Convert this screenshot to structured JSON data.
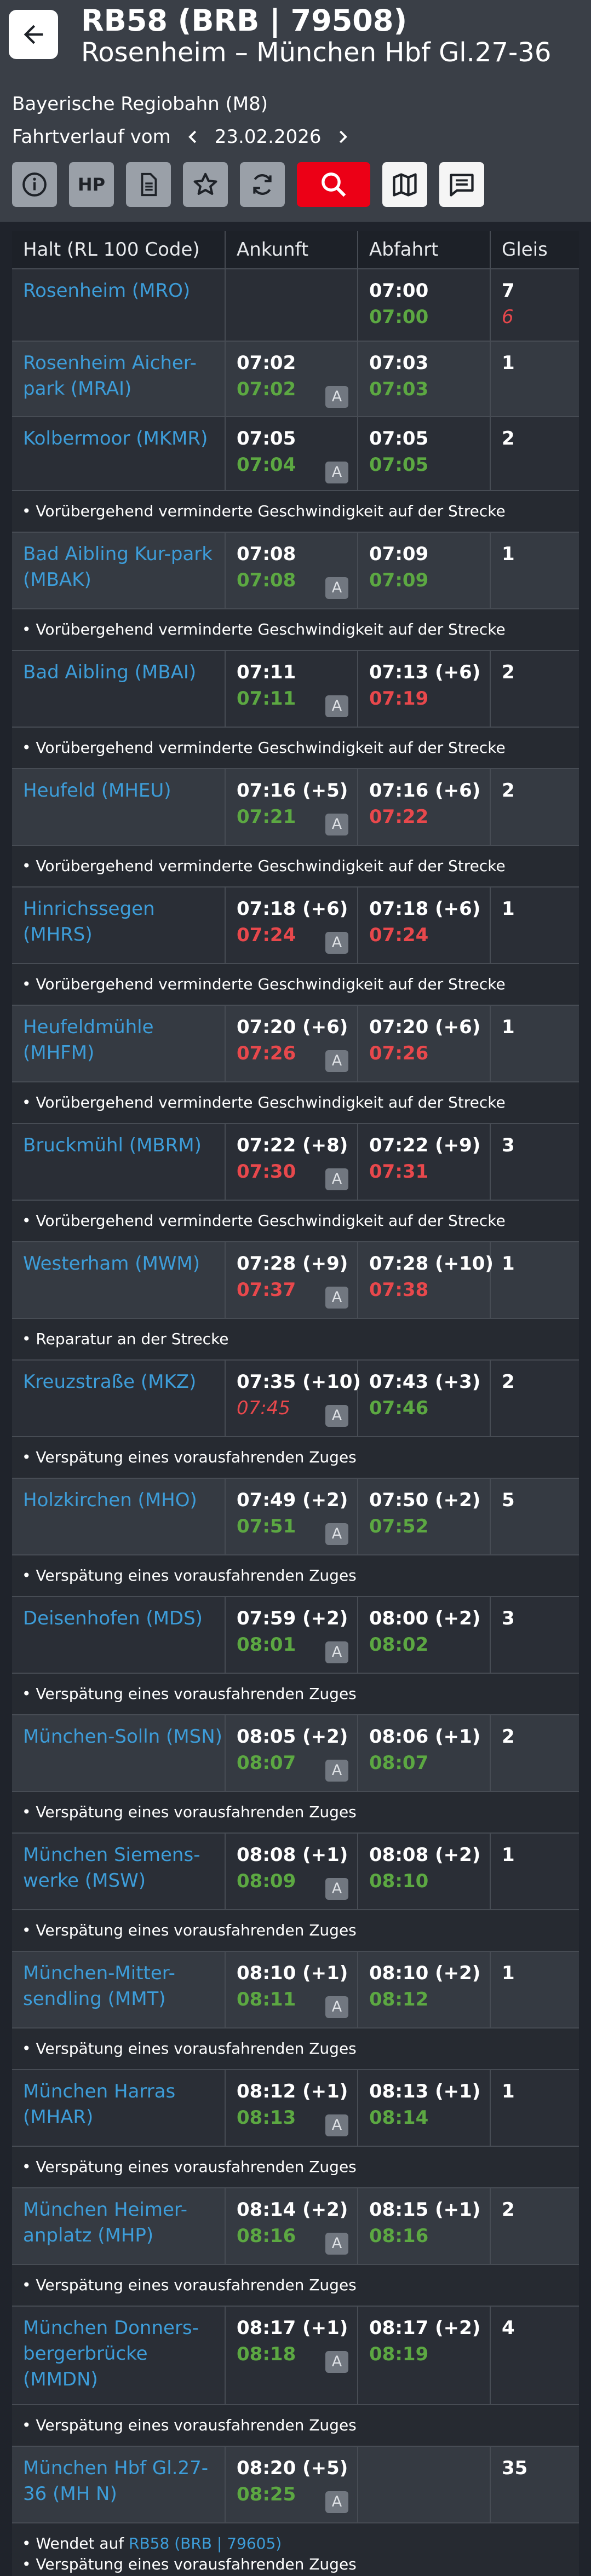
{
  "header": {
    "train": "RB58 (BRB | 79508)",
    "route": "Rosenheim – München Hbf Gl.27-36",
    "operator": "Bayerische Regiobahn (M8)",
    "date_label": "Fahrtverlauf vom",
    "date": "23.02.2026"
  },
  "toolbar": {
    "hp_label": "HP"
  },
  "table": {
    "headers": [
      "Halt (RL 100 Code)",
      "Ankunft",
      "Abfahrt",
      "Gleis"
    ],
    "badge": "A",
    "stops": [
      {
        "name": "Rosenheim (MRO)",
        "arr": "",
        "arr_act": "",
        "arr_cls": "",
        "dep": "07:00",
        "dep_act": "07:00",
        "dep_cls": "ok",
        "track": "7",
        "track_alt": "6",
        "h": 132,
        "note": "",
        "bg": "dark"
      },
      {
        "name": "Rosenheim Aicher-park (MRAI)",
        "arr": "07:02",
        "arr_act": "07:02",
        "arr_cls": "ok",
        "dep": "07:03",
        "dep_act": "07:03",
        "dep_cls": "ok",
        "track": "1",
        "track_alt": "",
        "h": 138,
        "note": "",
        "bg": "light"
      },
      {
        "name": "Kolbermoor (MKMR)",
        "arr": "07:05",
        "arr_act": "07:04",
        "arr_cls": "ok",
        "dep": "07:05",
        "dep_act": "07:05",
        "dep_cls": "ok",
        "track": "2",
        "track_alt": "",
        "h": 135,
        "note": "Vorübergehend verminderte Geschwindigkeit auf der Strecke",
        "bg": "dark"
      },
      {
        "name": "Bad Aibling Kur-park (MBAK)",
        "arr": "07:08",
        "arr_act": "07:08",
        "arr_cls": "ok",
        "dep": "07:09",
        "dep_act": "07:09",
        "dep_cls": "ok",
        "track": "1",
        "track_alt": "",
        "h": 140,
        "note": "Vorübergehend verminderte Geschwindigkeit auf der Strecke",
        "bg": "light"
      },
      {
        "name": "Bad Aibling (MBAI)",
        "arr": "07:11",
        "arr_act": "07:11",
        "arr_cls": "ok",
        "dep": "07:13 (+6)",
        "dep_act": "07:19",
        "dep_cls": "late",
        "track": "2",
        "track_alt": "",
        "h": 140,
        "note": "Vorübergehend verminderte Geschwindigkeit auf der Strecke",
        "bg": "dark"
      },
      {
        "name": "Heufeld (MHEU)",
        "arr": "07:16 (+5)",
        "arr_act": "07:21",
        "arr_cls": "ok",
        "dep": "07:16 (+6)",
        "dep_act": "07:22",
        "dep_cls": "late",
        "track": "2",
        "track_alt": "",
        "h": 140,
        "note": "Vorübergehend verminderte Geschwindigkeit auf der Strecke",
        "bg": "light"
      },
      {
        "name": "Hinrichssegen (MHRS)",
        "arr": "07:18 (+6)",
        "arr_act": "07:24",
        "arr_cls": "late",
        "dep": "07:18 (+6)",
        "dep_act": "07:24",
        "dep_cls": "late",
        "track": "1",
        "track_alt": "",
        "h": 140,
        "note": "Vorübergehend verminderte Geschwindigkeit auf der Strecke",
        "bg": "dark"
      },
      {
        "name": "Heufeldmühle (MHFM)",
        "arr": "07:20 (+6)",
        "arr_act": "07:26",
        "arr_cls": "late",
        "dep": "07:20 (+6)",
        "dep_act": "07:26",
        "dep_cls": "late",
        "track": "1",
        "track_alt": "",
        "h": 140,
        "note": "Vorübergehend verminderte Geschwindigkeit auf der Strecke",
        "bg": "light"
      },
      {
        "name": "Bruckmühl (MBRM)",
        "arr": "07:22 (+8)",
        "arr_act": "07:30",
        "arr_cls": "late",
        "dep": "07:22 (+9)",
        "dep_act": "07:31",
        "dep_cls": "late",
        "track": "3",
        "track_alt": "",
        "h": 140,
        "note": "Vorübergehend verminderte Geschwindigkeit auf der Strecke",
        "bg": "dark"
      },
      {
        "name": "Westerham (MWM)",
        "arr": "07:28 (+9)",
        "arr_act": "07:37",
        "arr_cls": "late",
        "dep": "07:28 (+10)",
        "dep_act": "07:38",
        "dep_cls": "late",
        "track": "1",
        "track_alt": "",
        "h": 140,
        "note": "Reparatur an der Strecke",
        "bg": "light"
      },
      {
        "name": "Kreuzstraße (MKZ)",
        "arr": "07:35 (+10)",
        "arr_act": "07:45",
        "arr_cls": "late italic",
        "dep": "07:43 (+3)",
        "dep_act": "07:46",
        "dep_cls": "ok",
        "track": "2",
        "track_alt": "",
        "h": 140,
        "note": "Verspätung eines vorausfahrenden Zuges",
        "bg": "dark"
      },
      {
        "name": "Holzkirchen (MHO)",
        "arr": "07:49 (+2)",
        "arr_act": "07:51",
        "arr_cls": "ok",
        "dep": "07:50 (+2)",
        "dep_act": "07:52",
        "dep_cls": "ok",
        "track": "5",
        "track_alt": "",
        "h": 140,
        "note": "Verspätung eines vorausfahrenden Zuges",
        "bg": "light"
      },
      {
        "name": "Deisenhofen (MDS)",
        "arr": "07:59 (+2)",
        "arr_act": "08:01",
        "arr_cls": "ok",
        "dep": "08:00 (+2)",
        "dep_act": "08:02",
        "dep_cls": "ok",
        "track": "3",
        "track_alt": "",
        "h": 140,
        "note": "Verspätung eines vorausfahrenden Zuges",
        "bg": "dark"
      },
      {
        "name": "München-Solln (MSN)",
        "arr": "08:05 (+2)",
        "arr_act": "08:07",
        "arr_cls": "ok",
        "dep": "08:06 (+1)",
        "dep_act": "08:07",
        "dep_cls": "ok",
        "track": "2",
        "track_alt": "",
        "h": 140,
        "note": "Verspätung eines vorausfahrenden Zuges",
        "bg": "light"
      },
      {
        "name": "München Siemens-werke (MSW)",
        "arr": "08:08 (+1)",
        "arr_act": "08:09",
        "arr_cls": "ok",
        "dep": "08:08 (+2)",
        "dep_act": "08:10",
        "dep_cls": "ok",
        "track": "1",
        "track_alt": "",
        "h": 140,
        "note": "Verspätung eines vorausfahrenden Zuges",
        "bg": "dark"
      },
      {
        "name": "München-Mitter-sendling (MMT)",
        "arr": "08:10 (+1)",
        "arr_act": "08:11",
        "arr_cls": "ok",
        "dep": "08:10 (+2)",
        "dep_act": "08:12",
        "dep_cls": "ok",
        "track": "1",
        "track_alt": "",
        "h": 140,
        "note": "Verspätung eines vorausfahrenden Zuges",
        "bg": "light"
      },
      {
        "name": "München Harras (MHAR)",
        "arr": "08:12 (+1)",
        "arr_act": "08:13",
        "arr_cls": "ok",
        "dep": "08:13 (+1)",
        "dep_act": "08:14",
        "dep_cls": "ok",
        "track": "1",
        "track_alt": "",
        "h": 140,
        "note": "Verspätung eines vorausfahrenden Zuges",
        "bg": "dark"
      },
      {
        "name": "München Heimer-anplatz (MHP)",
        "arr": "08:14 (+2)",
        "arr_act": "08:16",
        "arr_cls": "ok",
        "dep": "08:15 (+1)",
        "dep_act": "08:16",
        "dep_cls": "ok",
        "track": "2",
        "track_alt": "",
        "h": 140,
        "note": "Verspätung eines vorausfahrenden Zuges",
        "bg": "light"
      },
      {
        "name": "München Donners-bergerbrücke (MMDN)",
        "arr": "08:17 (+1)",
        "arr_act": "08:18",
        "arr_cls": "ok",
        "dep": "08:17 (+2)",
        "dep_act": "08:19",
        "dep_cls": "ok",
        "track": "4",
        "track_alt": "",
        "h": 180,
        "note": "Verspätung eines vorausfahrenden Zuges",
        "bg": "dark"
      },
      {
        "name": "München Hbf Gl.27-36 (MH N)",
        "arr": "08:20 (+5)",
        "arr_act": "08:25",
        "arr_cls": "ok",
        "dep": "",
        "dep_act": "",
        "dep_cls": "",
        "track": "35",
        "track_alt": "",
        "h": 140,
        "note": "",
        "bg": "light"
      }
    ],
    "final_note": {
      "prefix": "Wendet auf",
      "link": "RB58 (BRB | 79605)",
      "line2": "Verspätung eines vorausfahrenden Zuges"
    }
  }
}
